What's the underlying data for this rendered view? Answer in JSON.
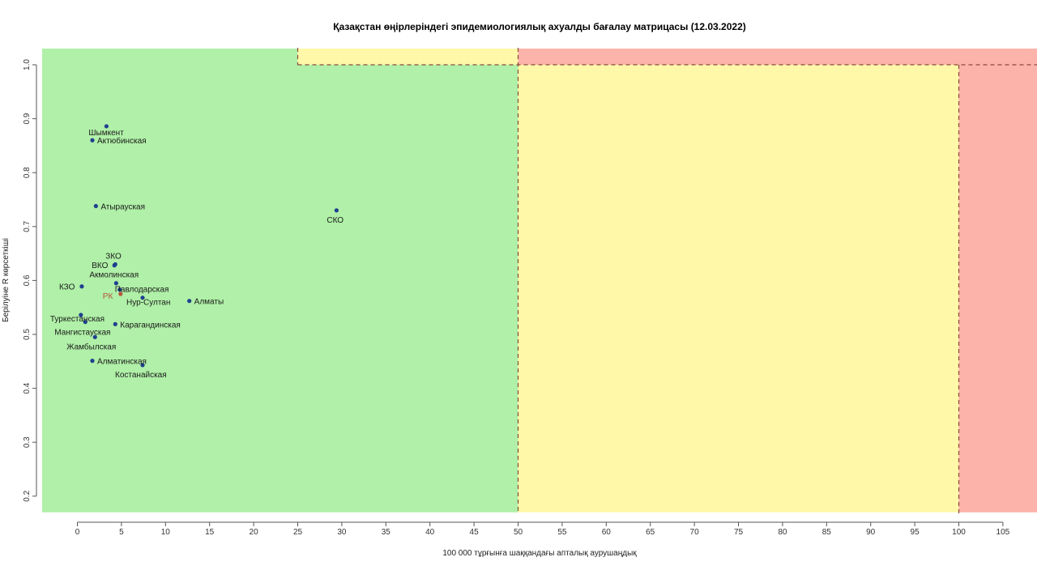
{
  "chart_data": {
    "type": "scatter",
    "title": "Қазақстан өңірлеріндегі эпидемиологиялық ахуалды бағалау матрицасы  (12.03.2022)",
    "xlabel": "100 000 тұрғынға шаққандағы апталық аурушаңдық",
    "ylabel": "Берілуіне R көрсеткіші",
    "xlim": [
      -4,
      109
    ],
    "ylim": [
      0.17,
      1.03
    ],
    "x_ticks": [
      0,
      5,
      10,
      15,
      20,
      25,
      30,
      35,
      40,
      45,
      50,
      55,
      60,
      65,
      70,
      75,
      80,
      85,
      90,
      95,
      100,
      105
    ],
    "y_ticks": [
      0.2,
      0.3,
      0.4,
      0.5,
      0.6,
      0.7,
      0.8,
      0.9,
      1.0
    ],
    "y_tick_labels": [
      "0.2",
      "0.3",
      "0.4",
      "0.5",
      "0.6",
      "0.7",
      "0.8",
      "0.9",
      "1.0"
    ],
    "zones": [
      {
        "name": "green",
        "color": "#b0f0a8",
        "x_from": -4,
        "x_to": 50,
        "y_from": 0.17,
        "y_to": 1.0
      },
      {
        "name": "green",
        "color": "#b0f0a8",
        "x_from": -4,
        "x_to": 25,
        "y_from": 1.0,
        "y_to": 1.03
      },
      {
        "name": "yellow",
        "color": "#fef8a8",
        "x_from": 25,
        "x_to": 50,
        "y_from": 1.0,
        "y_to": 1.03
      },
      {
        "name": "yellow",
        "color": "#fef8a8",
        "x_from": 50,
        "x_to": 100,
        "y_from": 0.17,
        "y_to": 1.0
      },
      {
        "name": "red",
        "color": "#fcb3aa",
        "x_from": 50,
        "x_to": 109,
        "y_from": 1.0,
        "y_to": 1.03
      },
      {
        "name": "red",
        "color": "#fcb3aa",
        "x_from": 100,
        "x_to": 109,
        "y_from": 0.17,
        "y_to": 1.0
      }
    ],
    "thresholds": {
      "x": [
        25,
        50,
        100
      ],
      "y": [
        1.0
      ]
    },
    "point_color": "#1f3f8f",
    "label_color": "#1a1a1a",
    "highlight_color": "#b8543a",
    "points": [
      {
        "label": "Шымкент",
        "x": 3.3,
        "y": 0.886
      },
      {
        "label": "Актюбинская",
        "x": 1.7,
        "y": 0.86
      },
      {
        "label": "Атырауская",
        "x": 2.1,
        "y": 0.738
      },
      {
        "label": "СКО",
        "x": 29.4,
        "y": 0.73
      },
      {
        "label": "ЗКО",
        "x": 4.3,
        "y": 0.63
      },
      {
        "label": "ВКО",
        "x": 4.2,
        "y": 0.628
      },
      {
        "label": "Акмолинская",
        "x": 4.4,
        "y": 0.595
      },
      {
        "label": "КЗО",
        "x": 0.5,
        "y": 0.589
      },
      {
        "label": "Павлодарская",
        "x": 4.8,
        "y": 0.583
      },
      {
        "label": "РК",
        "x": 4.9,
        "y": 0.575,
        "highlight": true
      },
      {
        "label": "Нур-Султан",
        "x": 7.4,
        "y": 0.568
      },
      {
        "label": "Алматы",
        "x": 12.7,
        "y": 0.562
      },
      {
        "label": "Туркестанская",
        "x": 0.4,
        "y": 0.536
      },
      {
        "label": "Мангистауская",
        "x": 0.9,
        "y": 0.523
      },
      {
        "label": "Карагандинская",
        "x": 4.3,
        "y": 0.519
      },
      {
        "label": "Жамбылская",
        "x": 2.0,
        "y": 0.495
      },
      {
        "label": "Алматинская",
        "x": 1.7,
        "y": 0.451
      },
      {
        "label": "Костанайская",
        "x": 7.4,
        "y": 0.443
      }
    ]
  }
}
